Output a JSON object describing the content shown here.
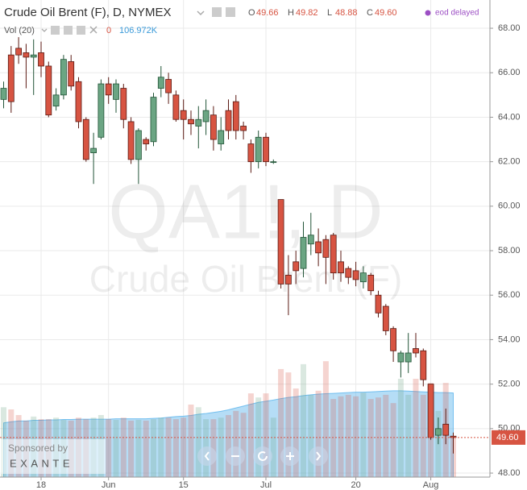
{
  "chart_data": {
    "type": "candlestick",
    "title": "Crude Oil Brent (F), D, NYMEX",
    "ohlc": {
      "letters": [
        "O",
        "H",
        "L",
        "C"
      ],
      "values": [
        49.66,
        49.82,
        48.88,
        49.6
      ],
      "value_labels": [
        "49.66",
        "49.82",
        "48.88",
        "49.60"
      ]
    },
    "status": "eod delayed",
    "watermark": [
      "QA1!, D",
      "Crude Oil Brent (F)"
    ],
    "sponsor": [
      "Sponsored by",
      "EXANTE"
    ],
    "last_price": {
      "value": 49.6,
      "label": "49.60"
    },
    "up_color": "#6ba583",
    "down_color": "#d75442",
    "categories": [
      null,
      null,
      null,
      null,
      null,
      "18",
      null,
      null,
      null,
      null,
      null,
      null,
      null,
      null,
      "Jun",
      null,
      null,
      null,
      null,
      null,
      null,
      null,
      null,
      null,
      "15",
      null,
      null,
      null,
      null,
      null,
      null,
      null,
      null,
      null,
      null,
      "Jul",
      null,
      null,
      null,
      null,
      null,
      null,
      null,
      null,
      null,
      null,
      null,
      "20",
      null,
      null,
      null,
      null,
      null,
      null,
      null,
      null,
      null,
      "Aug",
      null,
      null,
      null
    ],
    "open": [
      64.8,
      66.8,
      67.1,
      66.9,
      66.7,
      66.9,
      66.3,
      64.5,
      65.0,
      66.5,
      65.6,
      63.9,
      62.4,
      63.1,
      65.5,
      64.8,
      65.3,
      63.8,
      62.1,
      63.0,
      62.9,
      65.3,
      65.7,
      65.0,
      64.3,
      63.9,
      63.6,
      63.8,
      64.1,
      62.8,
      64.3,
      64.7,
      63.6,
      62.8,
      62.0,
      63.1,
      62.0,
      60.3,
      56.9,
      57.5,
      57.2,
      58.3,
      58.4,
      58.5,
      58.7,
      57.5,
      57.2,
      57.1,
      56.6,
      56.9,
      56.0,
      55.5,
      54.5,
      53.0,
      53.0,
      53.6,
      53.5,
      52.0,
      49.7,
      50.2,
      49.66
    ],
    "high": [
      65.6,
      67.2,
      67.6,
      67.3,
      67.5,
      67.4,
      66.5,
      65.3,
      66.8,
      66.8,
      65.8,
      64.0,
      63.3,
      65.7,
      65.8,
      65.7,
      65.5,
      64.0,
      63.5,
      63.1,
      65.1,
      66.3,
      66.0,
      65.2,
      64.8,
      64.3,
      64.5,
      64.8,
      64.5,
      64.0,
      64.8,
      65.0,
      63.8,
      63.0,
      63.4,
      63.3,
      62.1,
      60.3,
      57.8,
      58.0,
      59.3,
      59.7,
      59.0,
      58.7,
      58.8,
      58.0,
      57.3,
      57.5,
      57.3,
      57.0,
      56.2,
      55.6,
      54.6,
      53.5,
      54.3,
      54.3,
      53.6,
      52.0,
      50.5,
      50.9,
      49.82
    ],
    "low": [
      64.4,
      64.2,
      66.4,
      65.3,
      65.0,
      65.8,
      64.0,
      64.3,
      64.8,
      65.2,
      63.5,
      62.0,
      61.0,
      63.0,
      64.6,
      64.2,
      63.5,
      61.9,
      61.0,
      62.5,
      62.7,
      64.9,
      64.6,
      63.8,
      63.0,
      63.2,
      62.6,
      63.2,
      62.5,
      62.5,
      63.0,
      63.0,
      63.0,
      61.5,
      61.7,
      61.8,
      61.9,
      56.3,
      55.1,
      56.5,
      56.8,
      57.8,
      57.3,
      56.5,
      56.7,
      56.6,
      56.5,
      56.4,
      56.3,
      56.0,
      55.0,
      54.2,
      53.0,
      52.3,
      52.5,
      53.2,
      51.9,
      49.5,
      49.3,
      49.3,
      48.88
    ],
    "close": [
      65.3,
      64.7,
      66.8,
      66.7,
      66.8,
      66.3,
      64.1,
      65.0,
      66.6,
      65.4,
      63.8,
      62.1,
      62.6,
      65.5,
      65.0,
      65.5,
      63.9,
      62.1,
      63.4,
      62.8,
      64.9,
      65.8,
      65.1,
      63.9,
      63.9,
      63.7,
      63.9,
      64.3,
      63.0,
      63.4,
      63.4,
      63.4,
      63.4,
      62.0,
      63.1,
      62.0,
      62.0,
      56.5,
      56.5,
      57.1,
      58.6,
      58.7,
      57.9,
      57.7,
      57.0,
      57.0,
      56.8,
      56.7,
      57.0,
      56.2,
      55.2,
      54.4,
      53.5,
      53.4,
      53.4,
      53.4,
      52.2,
      49.6,
      50.0,
      49.7,
      49.6
    ],
    "ylim": [
      47.82,
      69.27
    ],
    "yticks": [
      {
        "value": 48,
        "label": "48.00"
      },
      {
        "value": 50,
        "label": "50.00"
      },
      {
        "value": 52,
        "label": "52.00"
      },
      {
        "value": 54,
        "label": "54.00"
      },
      {
        "value": 56,
        "label": "56.00"
      },
      {
        "value": 58,
        "label": "58.00"
      },
      {
        "value": 60,
        "label": "60.00"
      },
      {
        "value": 62,
        "label": "62.00"
      },
      {
        "value": 64,
        "label": "64.00"
      },
      {
        "value": 66,
        "label": "66.00"
      },
      {
        "value": 68,
        "label": "68.00"
      }
    ],
    "grid": true,
    "volume": {
      "name": "Vol (20)",
      "extra": "0",
      "last": {
        "value": 106.972,
        "label": "106.972K"
      },
      "ylim": [
        0,
        1276
      ],
      "ma_color": "#5ab4ec",
      "values": [
        187,
        181,
        166,
        151,
        162,
        155,
        155,
        159,
        153,
        151,
        159,
        155,
        159,
        166,
        155,
        153,
        159,
        151,
        153,
        151,
        155,
        159,
        159,
        155,
        159,
        194,
        187,
        155,
        155,
        159,
        166,
        177,
        172,
        224,
        213,
        224,
        159,
        289,
        280,
        237,
        302,
        220,
        231,
        310,
        209,
        216,
        220,
        216,
        226,
        209,
        213,
        220,
        198,
        263,
        220,
        263,
        220,
        252,
        177,
        252,
        106.972
      ],
      "ma_values": [
        145,
        148,
        150,
        150,
        152,
        152,
        153,
        153,
        154,
        154,
        155,
        155,
        155,
        155,
        155,
        156,
        156,
        156,
        156,
        156,
        157,
        158,
        160,
        162,
        163,
        165,
        168,
        170,
        173,
        176,
        180,
        185,
        190,
        195,
        200,
        203,
        206,
        210,
        213,
        215,
        218,
        220,
        222,
        223,
        224,
        225,
        226,
        227,
        227,
        228,
        229,
        230,
        231,
        231,
        230,
        229,
        228,
        227,
        226,
        226,
        225
      ]
    }
  }
}
